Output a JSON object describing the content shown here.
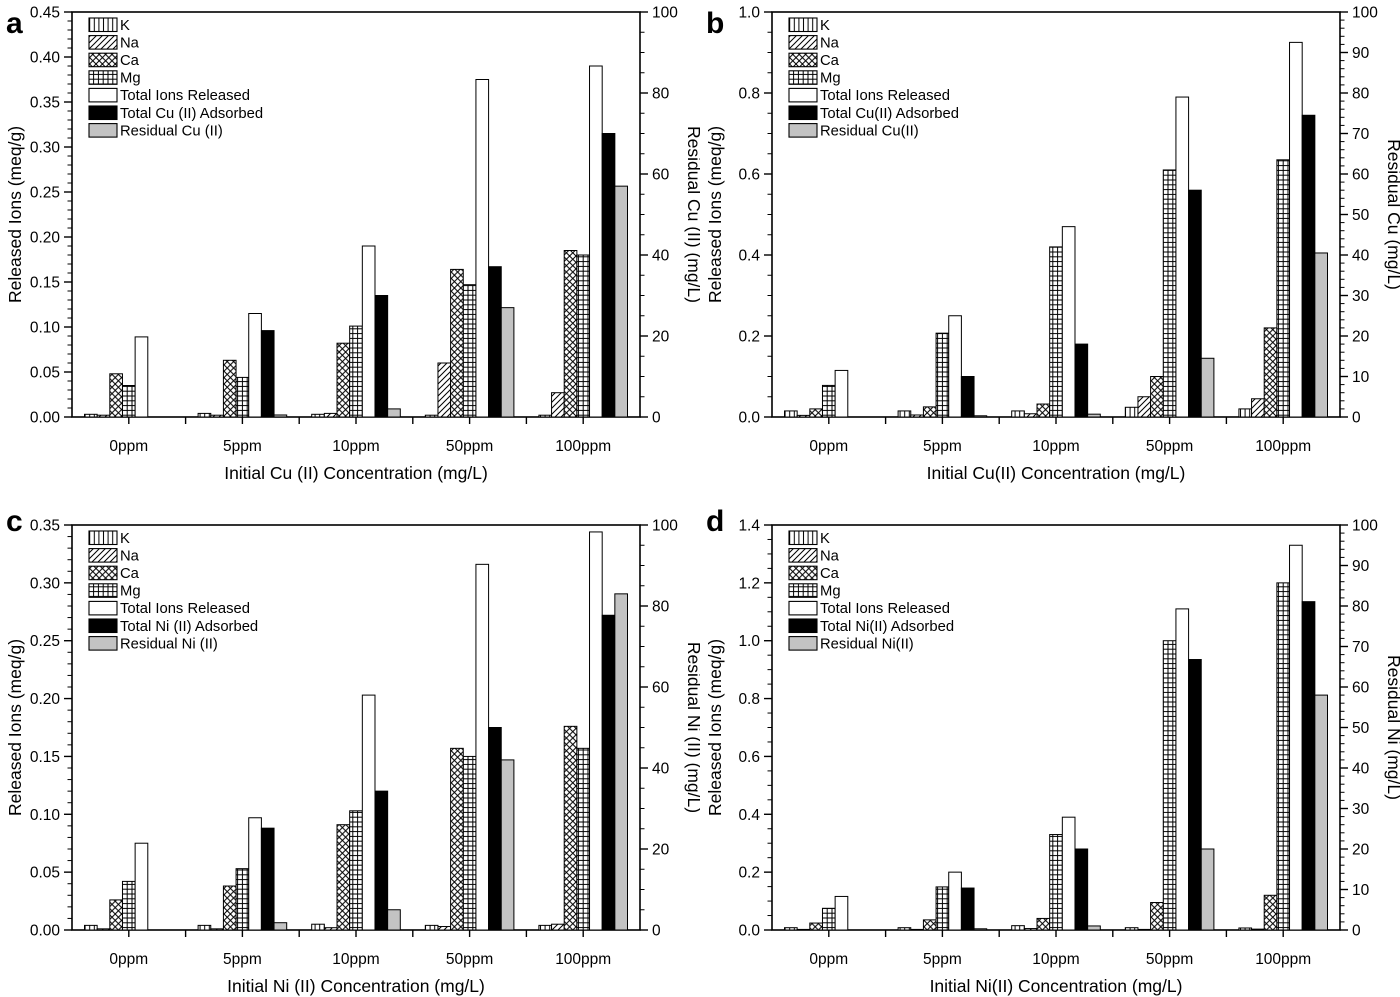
{
  "figure": {
    "panel_letters": [
      "a",
      "b",
      "c",
      "d"
    ]
  },
  "colors": {
    "background": "#ffffff",
    "axis_stroke": "#000000",
    "bar_white": "#ffffff",
    "bar_black": "#000000",
    "residual_gray": "#c3c3c3"
  },
  "chart_data": [
    {
      "panel": "a",
      "type": "bar",
      "categories": [
        "0ppm",
        "5ppm",
        "10ppm",
        "50ppm",
        "100ppm"
      ],
      "xlabel": "Initial Cu (II) Concentration (mg/L)",
      "ylabel_left": "Released Ions (meq/g)",
      "ylabel_right": "Residual Cu (II) (mg/L)",
      "legend_position": "top-left",
      "left_axis": {
        "min": 0,
        "max": 0.45,
        "major_step": 0.05,
        "minor_step": 0.01,
        "decimals": 2
      },
      "right_axis": {
        "min": 0,
        "max": 100,
        "major_step": 20,
        "minor_step": 5,
        "decimals": 0
      },
      "series": [
        {
          "name": "K",
          "pattern": "vertical",
          "axis": "left",
          "values": [
            0.003,
            0.004,
            0.003,
            0.002,
            0.002
          ]
        },
        {
          "name": "Na",
          "pattern": "diagonal",
          "axis": "left",
          "values": [
            0.002,
            0.002,
            0.004,
            0.06,
            0.027
          ]
        },
        {
          "name": "Ca",
          "pattern": "crosshatch",
          "axis": "left",
          "values": [
            0.048,
            0.063,
            0.082,
            0.164,
            0.185
          ]
        },
        {
          "name": "Mg",
          "pattern": "grid",
          "axis": "left",
          "values": [
            0.035,
            0.044,
            0.101,
            0.147,
            0.18
          ]
        },
        {
          "name": "Total Ions Released",
          "pattern": "white",
          "axis": "left",
          "values": [
            0.089,
            0.115,
            0.19,
            0.375,
            0.39
          ]
        },
        {
          "name": "Total Cu (II) Adsorbed",
          "pattern": "black",
          "axis": "left",
          "values": [
            0,
            0.096,
            0.135,
            0.167,
            0.315
          ]
        },
        {
          "name": "Residual Cu (II)",
          "pattern": "gray",
          "axis": "right",
          "values": [
            0,
            0.5,
            2,
            27,
            57
          ]
        }
      ]
    },
    {
      "panel": "b",
      "type": "bar",
      "categories": [
        "0ppm",
        "5ppm",
        "10ppm",
        "50ppm",
        "100ppm"
      ],
      "xlabel": "Initial Cu(II) Concentration (mg/L)",
      "ylabel_left": "Released Ions (meq/g)",
      "ylabel_right": "Residual Cu (mg/L)",
      "legend_position": "top-left",
      "left_axis": {
        "min": 0,
        "max": 1.0,
        "major_step": 0.2,
        "minor_step": 0.05,
        "decimals": 1
      },
      "right_axis": {
        "min": 0,
        "max": 100,
        "major_step": 10,
        "minor_step": 2,
        "decimals": 0
      },
      "series": [
        {
          "name": "K",
          "pattern": "vertical",
          "axis": "left",
          "values": [
            0.015,
            0.015,
            0.015,
            0.024,
            0.02
          ]
        },
        {
          "name": "Na",
          "pattern": "diagonal",
          "axis": "left",
          "values": [
            0.004,
            0.005,
            0.008,
            0.05,
            0.045
          ]
        },
        {
          "name": "Ca",
          "pattern": "crosshatch",
          "axis": "left",
          "values": [
            0.02,
            0.025,
            0.032,
            0.1,
            0.22
          ]
        },
        {
          "name": "Mg",
          "pattern": "grid",
          "axis": "left",
          "values": [
            0.078,
            0.207,
            0.42,
            0.61,
            0.635
          ]
        },
        {
          "name": "Total Ions Released",
          "pattern": "white",
          "axis": "left",
          "values": [
            0.115,
            0.25,
            0.47,
            0.79,
            0.925
          ]
        },
        {
          "name": "Total Cu(II) Adsorbed",
          "pattern": "black",
          "axis": "left",
          "values": [
            0,
            0.1,
            0.18,
            0.56,
            0.745
          ]
        },
        {
          "name": "Residual Cu(II)",
          "pattern": "gray",
          "axis": "right",
          "values": [
            0,
            0.3,
            0.7,
            14.5,
            40.5
          ]
        }
      ]
    },
    {
      "panel": "c",
      "type": "bar",
      "categories": [
        "0ppm",
        "5ppm",
        "10ppm",
        "50ppm",
        "100ppm"
      ],
      "xlabel": "Initial Ni (II) Concentration (mg/L)",
      "ylabel_left": "Released Ions (meq/g)",
      "ylabel_right": "Residual Ni (II) (mg/L)",
      "legend_position": "top-left",
      "left_axis": {
        "min": 0,
        "max": 0.35,
        "major_step": 0.05,
        "minor_step": 0.01,
        "decimals": 2
      },
      "right_axis": {
        "min": 0,
        "max": 100,
        "major_step": 20,
        "minor_step": 5,
        "decimals": 0
      },
      "series": [
        {
          "name": "K",
          "pattern": "vertical",
          "axis": "left",
          "values": [
            0.004,
            0.004,
            0.005,
            0.004,
            0.004
          ]
        },
        {
          "name": "Na",
          "pattern": "diagonal",
          "axis": "left",
          "values": [
            0.001,
            0.001,
            0.002,
            0.003,
            0.005
          ]
        },
        {
          "name": "Ca",
          "pattern": "crosshatch",
          "axis": "left",
          "values": [
            0.026,
            0.038,
            0.091,
            0.157,
            0.176
          ]
        },
        {
          "name": "Mg",
          "pattern": "grid",
          "axis": "left",
          "values": [
            0.042,
            0.053,
            0.103,
            0.15,
            0.157
          ]
        },
        {
          "name": "Total Ions Released",
          "pattern": "white",
          "axis": "left",
          "values": [
            0.075,
            0.097,
            0.203,
            0.316,
            0.344
          ]
        },
        {
          "name": "Total Ni (II) Adsorbed",
          "pattern": "black",
          "axis": "left",
          "values": [
            0,
            0.088,
            0.12,
            0.175,
            0.272
          ]
        },
        {
          "name": "Residual Ni (II)",
          "pattern": "gray",
          "axis": "right",
          "values": [
            0,
            1.8,
            5,
            42,
            83
          ]
        }
      ]
    },
    {
      "panel": "d",
      "type": "bar",
      "categories": [
        "0ppm",
        "5ppm",
        "10ppm",
        "50ppm",
        "100ppm"
      ],
      "xlabel": "Initial Ni(II) Concentration (mg/L)",
      "ylabel_left": "Released Ions (meq/g)",
      "ylabel_right": "Residual Ni (mg/L)",
      "legend_position": "top-left",
      "left_axis": {
        "min": 0,
        "max": 1.4,
        "major_step": 0.2,
        "minor_step": 0.05,
        "decimals": 1
      },
      "right_axis": {
        "min": 0,
        "max": 100,
        "major_step": 10,
        "minor_step": 2,
        "decimals": 0
      },
      "series": [
        {
          "name": "K",
          "pattern": "vertical",
          "axis": "left",
          "values": [
            0.008,
            0.008,
            0.015,
            0.008,
            0.007
          ]
        },
        {
          "name": "Na",
          "pattern": "diagonal",
          "axis": "left",
          "values": [
            0.002,
            0.002,
            0.005,
            0.002,
            0.003
          ]
        },
        {
          "name": "Ca",
          "pattern": "crosshatch",
          "axis": "left",
          "values": [
            0.024,
            0.035,
            0.04,
            0.095,
            0.12
          ]
        },
        {
          "name": "Mg",
          "pattern": "grid",
          "axis": "left",
          "values": [
            0.075,
            0.149,
            0.33,
            1.0,
            1.2
          ]
        },
        {
          "name": "Total Ions Released",
          "pattern": "white",
          "axis": "left",
          "values": [
            0.116,
            0.2,
            0.39,
            1.11,
            1.33
          ]
        },
        {
          "name": "Total Ni(II) Adsorbed",
          "pattern": "black",
          "axis": "left",
          "values": [
            0,
            0.145,
            0.28,
            0.935,
            1.135
          ]
        },
        {
          "name": "Residual Ni(II)",
          "pattern": "gray",
          "axis": "right",
          "values": [
            0,
            0.3,
            1,
            20,
            58
          ]
        }
      ]
    }
  ]
}
